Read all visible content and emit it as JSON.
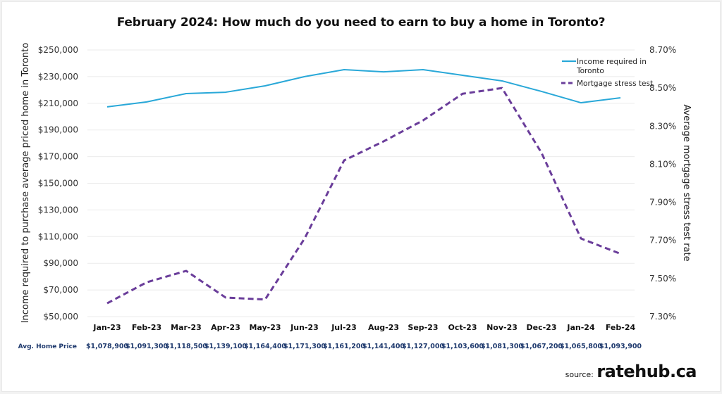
{
  "chart_data": {
    "type": "line",
    "title": "February 2024: How much do you need to earn to buy a home in Toronto?",
    "xlabel": "",
    "ylabel": "Income required to purchase average priced home in Toronto",
    "y2label": "Average mortgage stress test rate",
    "categories": [
      "Jan-23",
      "Feb-23",
      "Mar-23",
      "Apr-23",
      "May-23",
      "Jun-23",
      "Jul-23",
      "Aug-23",
      "Sep-23",
      "Oct-23",
      "Nov-23",
      "Dec-23",
      "Jan-24",
      "Feb-24"
    ],
    "ylim": [
      50000,
      250000
    ],
    "y_ticks": [
      50000,
      70000,
      90000,
      110000,
      130000,
      150000,
      170000,
      190000,
      210000,
      230000,
      250000
    ],
    "y_tick_labels": [
      "$50,000",
      "$70,000",
      "$90,000",
      "$110,000",
      "$130,000",
      "$150,000",
      "$170,000",
      "$190,000",
      "$210,000",
      "$230,000",
      "$250,000"
    ],
    "y2lim": [
      7.3,
      8.7
    ],
    "y2_ticks": [
      7.3,
      7.5,
      7.7,
      7.9,
      8.1,
      8.3,
      8.5,
      8.7
    ],
    "y2_tick_labels": [
      "7.30%",
      "7.50%",
      "7.70%",
      "7.90%",
      "8.10%",
      "8.30%",
      "8.50%",
      "8.70%"
    ],
    "grid": true,
    "legend_position": "top-right",
    "series": [
      {
        "name": "Income required in Toronto",
        "axis": "left",
        "style": "solid",
        "color": "#29a8d8",
        "values": [
          207300,
          211000,
          217300,
          218300,
          223100,
          230000,
          235200,
          233600,
          235200,
          231000,
          226800,
          218900,
          210400,
          214100
        ]
      },
      {
        "name": "Mortgage stress test",
        "axis": "right",
        "style": "dashed",
        "color": "#6a3d9a",
        "values": [
          7.37,
          7.48,
          7.54,
          7.4,
          7.39,
          7.71,
          8.12,
          8.22,
          8.33,
          8.47,
          8.5,
          8.16,
          7.71,
          7.63
        ]
      }
    ],
    "table_row": {
      "label": "Avg. Home Price",
      "values": [
        "$1,078,900",
        "$1,091,300",
        "$1,118,500",
        "$1,139,100",
        "$1,164,400",
        "$1,171,300",
        "$1,161,200",
        "$1,141,400",
        "$1,127,000",
        "$1,103,600",
        "$1,081,300",
        "$1,067,200",
        "$1,065,800",
        "$1,093,900"
      ]
    }
  },
  "legend": {
    "income_line1": "Income required in",
    "income_line2": "Toronto",
    "stress": "Mortgage stress test"
  },
  "source": {
    "prefix": "source:",
    "brand": "ratehub.ca"
  }
}
